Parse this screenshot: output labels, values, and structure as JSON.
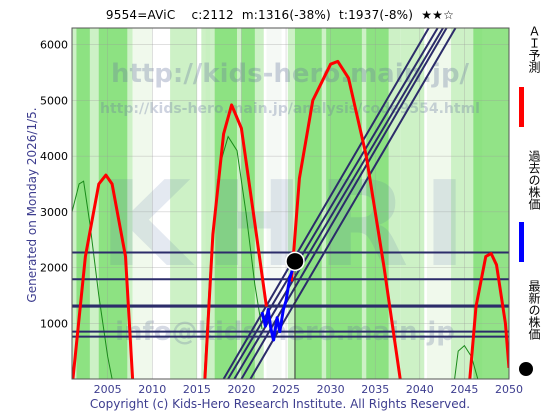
{
  "header": {
    "title": "9554=AViC    c:2112  m:1316(-38%)  t:1937(-8%)  ★★☆"
  },
  "side_label": "Generated on Monday 2026/1/5.",
  "footer": "Copyright (c) Kids-Hero Research Institute. All Rights Reserved.",
  "watermarks": {
    "url": "http://kids-hero.main.jp/",
    "url2": "http://kids-hero.main.jp/analysis/code9554.html",
    "logo": "KHRI",
    "mail": "info@kids-hero.main.jp"
  },
  "legend": [
    {
      "label": "ＡＩ予測",
      "color": "#ff0000",
      "kind": "line"
    },
    {
      "label": "過去の株価",
      "color": "#0000ff",
      "kind": "line"
    },
    {
      "label": "最新の株価",
      "color": "#000000",
      "kind": "dot"
    }
  ],
  "colors": {
    "green_light": "#c8f0c0",
    "green": "#86e07a",
    "red": "#ff0000",
    "blue": "#0000ff",
    "navy": "#2c2c6a",
    "axis_text": "#3d3d8f"
  },
  "chart_data": {
    "type": "line",
    "xlim": [
      2001,
      2050
    ],
    "ylim": [
      0,
      6300
    ],
    "x_ticks": [
      2005,
      2010,
      2015,
      2020,
      2025,
      2030,
      2035,
      2040,
      2045,
      2050
    ],
    "y_ticks": [
      1000,
      2000,
      3000,
      4000,
      5000,
      6000
    ],
    "grid": true,
    "legend_position": "right",
    "series": [
      {
        "name": "ＡＩ予測",
        "color": "#ff0000",
        "segments": [
          [
            [
              2001.1,
              0
            ],
            [
              2002.5,
              2200
            ],
            [
              2004,
              3500
            ],
            [
              2004.8,
              3660
            ],
            [
              2005.5,
              3500
            ],
            [
              2007,
              2200
            ],
            [
              2007.8,
              0
            ]
          ],
          [
            [
              2015.9,
              0
            ],
            [
              2016.8,
              2600
            ],
            [
              2018,
              4400
            ],
            [
              2018.9,
              4920
            ],
            [
              2020,
              4500
            ],
            [
              2021.5,
              2800
            ],
            [
              2022.8,
              1300
            ]
          ],
          [
            [
              2025.6,
              1750
            ],
            [
              2026.5,
              3600
            ],
            [
              2028,
              5000
            ],
            [
              2030,
              5650
            ],
            [
              2030.8,
              5700
            ],
            [
              2032,
              5400
            ],
            [
              2034,
              4000
            ],
            [
              2036,
              2000
            ],
            [
              2037.8,
              0
            ]
          ],
          [
            [
              2045.6,
              0
            ],
            [
              2046.3,
              1300
            ],
            [
              2047.4,
              2200
            ],
            [
              2048,
              2250
            ],
            [
              2048.6,
              2050
            ],
            [
              2049.6,
              1000
            ],
            [
              2050,
              200
            ]
          ]
        ]
      },
      {
        "name": "過去の株価",
        "color": "#0000ff",
        "points": [
          [
            2022.3,
            1200
          ],
          [
            2022.7,
            950
          ],
          [
            2023.0,
            1250
          ],
          [
            2023.3,
            900
          ],
          [
            2023.6,
            700
          ],
          [
            2024.0,
            1100
          ],
          [
            2024.3,
            850
          ],
          [
            2024.7,
            1250
          ],
          [
            2025.0,
            1400
          ],
          [
            2025.4,
            1800
          ],
          [
            2025.7,
            1950
          ],
          [
            2026.0,
            2112
          ]
        ]
      },
      {
        "name": "最新の株価",
        "color": "#000000",
        "points": [
          [
            2026.0,
            2112
          ]
        ]
      }
    ],
    "green_curves": [
      [
        [
          2001,
          3000
        ],
        [
          2001.8,
          3500
        ],
        [
          2002.3,
          3550
        ],
        [
          2003,
          2800
        ],
        [
          2004,
          1500
        ],
        [
          2005,
          400
        ],
        [
          2005.5,
          0
        ]
      ],
      [
        [
          2015.8,
          0
        ],
        [
          2016.5,
          2000
        ],
        [
          2017.5,
          3800
        ],
        [
          2018.5,
          4350
        ],
        [
          2019.5,
          4100
        ],
        [
          2020.5,
          3000
        ],
        [
          2021.5,
          1700
        ],
        [
          2022.3,
          900
        ]
      ],
      [
        [
          2043.9,
          0
        ],
        [
          2044.3,
          500
        ],
        [
          2045,
          600
        ],
        [
          2045.8,
          400
        ],
        [
          2046.5,
          0
        ]
      ]
    ],
    "trend_lines": [
      {
        "from": [
          2018.0,
          0
        ],
        "to": [
          2041.0,
          6300
        ]
      },
      {
        "from": [
          2018.5,
          0
        ],
        "to": [
          2042.0,
          6300
        ]
      },
      {
        "from": [
          2019.2,
          0
        ],
        "to": [
          2042.6,
          6300
        ]
      },
      {
        "from": [
          2020.0,
          0
        ],
        "to": [
          2043.0,
          6300
        ]
      },
      {
        "from": [
          2021.0,
          0
        ],
        "to": [
          2044.0,
          6300
        ]
      }
    ],
    "h_lines": [
      2270,
      1790,
      1320,
      1300,
      850,
      760
    ]
  }
}
